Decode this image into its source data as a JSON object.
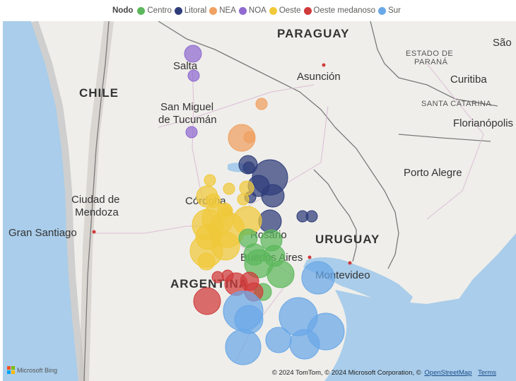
{
  "legend": {
    "title": "Nodo",
    "items": [
      {
        "label": "Centro",
        "color": "#5cb85c"
      },
      {
        "label": "Litoral",
        "color": "#2e3d7a"
      },
      {
        "label": "NEA",
        "color": "#f0a060"
      },
      {
        "label": "NOA",
        "color": "#8f6ad0"
      },
      {
        "label": "Oeste",
        "color": "#f0c93a"
      },
      {
        "label": "Oeste medanoso",
        "color": "#d03a3a"
      },
      {
        "label": "Sur",
        "color": "#6aa8e8"
      }
    ]
  },
  "map_labels": {
    "paraguay": "PARAGUAY",
    "chile": "CHILE",
    "uruguay": "URUGUAY",
    "argentina": "ARGENTINA",
    "estado_parana_1": "ESTADO DE",
    "estado_parana_2": "PARANÁ",
    "santa_catarina": "SANTA CATARINA",
    "asuncion": "Asunción",
    "curitiba": "Curitiba",
    "florianopolis": "Florianópolis",
    "porto_alegre": "Porto Alegre",
    "salta": "Salta",
    "tucuman_1": "San Miguel",
    "tucuman_2": "de Tucumán",
    "mendoza_1": "Ciudad de",
    "mendoza_2": "Mendoza",
    "gran_santiago": "Gran Santiago",
    "cordoba": "Córdoba",
    "rosario": "Rosario",
    "buenos_aires": "Buenos Aires",
    "montevideo": "Montevideo",
    "sao": "São"
  },
  "attribution": {
    "text": "© 2024 TomTom, © 2024 Microsoft Corporation, ©",
    "osm": "OpenStreetMap",
    "terms": "Terms",
    "bing": "Microsoft Bing"
  },
  "colors": {
    "water": "#a9cdea",
    "land": "#efeeea",
    "border": "#7a7a7a",
    "road": "#d9b8d6"
  }
}
